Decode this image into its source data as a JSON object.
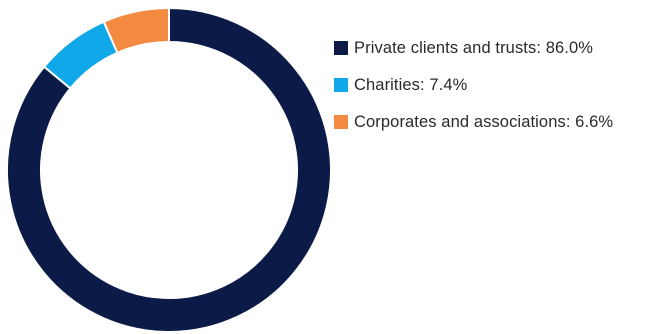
{
  "chart_data": {
    "type": "pie",
    "variant": "donut",
    "start_angle_deg": 0,
    "direction": "clockwise",
    "slices": [
      {
        "label": "Private clients and trusts",
        "value": 86.0,
        "value_label": "86.0%",
        "color": "#0b1a47"
      },
      {
        "label": "Charities",
        "value": 7.4,
        "value_label": "7.4%",
        "color": "#10a8e8"
      },
      {
        "label": "Corporates and associations",
        "value": 6.6,
        "value_label": "6.6%",
        "color": "#f28a42"
      }
    ],
    "legend": {
      "placement": "right",
      "items": [
        "Private clients and trusts: 86.0%",
        "Charities: 7.4%",
        "Corporates and associations: 6.6%"
      ]
    }
  }
}
